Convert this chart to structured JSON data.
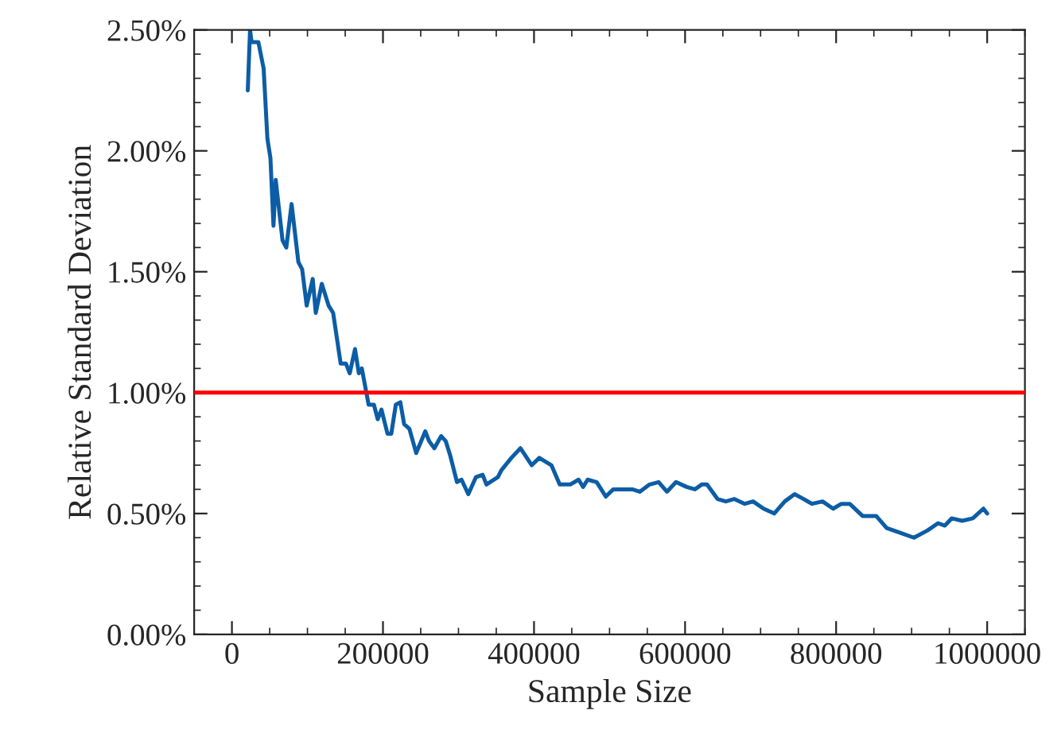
{
  "chart_data": {
    "type": "line",
    "xlabel": "Sample Size",
    "ylabel": "Relative Standard Deviation",
    "xlim": [
      -50000,
      1050000
    ],
    "xticks": [
      0,
      200000,
      400000,
      600000,
      800000,
      1000000
    ],
    "ylim": [
      0,
      2.5
    ],
    "yticks": [
      {
        "value": 0,
        "label": "0.00%"
      },
      {
        "value": 0.5,
        "label": "0.50%"
      },
      {
        "value": 1.0,
        "label": "1.00%"
      },
      {
        "value": 1.5,
        "label": "1.50%"
      },
      {
        "value": 2.0,
        "label": "2.00%"
      },
      {
        "value": 2.5,
        "label": "2.50%"
      }
    ],
    "grid": false,
    "legend": false,
    "ref_lines": [
      {
        "axis": "y",
        "value": 1.0,
        "color": "#ff0000",
        "line_style": "solid"
      }
    ],
    "series": [
      {
        "color": "#0c5da5",
        "x": [
          21000,
          24000,
          26000,
          35000,
          42000,
          47000,
          51000,
          55000,
          58000,
          67000,
          72000,
          79000,
          88000,
          93000,
          99000,
          107000,
          111000,
          119000,
          128000,
          134000,
          144000,
          151000,
          156000,
          163000,
          168000,
          172000,
          181000,
          188000,
          193000,
          198000,
          206000,
          211000,
          217000,
          223000,
          228000,
          235000,
          244000,
          256000,
          261000,
          268000,
          277000,
          283000,
          289000,
          298000,
          304000,
          313000,
          323000,
          332000,
          337000,
          352000,
          357000,
          370000,
          382000,
          397000,
          407000,
          423000,
          434000,
          448000,
          459000,
          465000,
          471000,
          483000,
          495000,
          505000,
          519000,
          530000,
          540000,
          553000,
          565000,
          576000,
          588000,
          602000,
          613000,
          622000,
          629000,
          643000,
          654000,
          665000,
          679000,
          690000,
          704000,
          718000,
          732000,
          745000,
          757000,
          768000,
          782000,
          796000,
          807000,
          818000,
          835000,
          853000,
          867000,
          885000,
          903000,
          921000,
          935000,
          944000,
          953000,
          967000,
          981000,
          995000,
          1000000
        ],
        "values": [
          2.25,
          2.5,
          2.45,
          2.45,
          2.34,
          2.05,
          1.97,
          1.69,
          1.88,
          1.63,
          1.6,
          1.78,
          1.54,
          1.51,
          1.36,
          1.47,
          1.33,
          1.45,
          1.36,
          1.33,
          1.12,
          1.12,
          1.08,
          1.18,
          1.08,
          1.1,
          0.95,
          0.95,
          0.89,
          0.93,
          0.83,
          0.83,
          0.95,
          0.96,
          0.87,
          0.85,
          0.75,
          0.84,
          0.8,
          0.77,
          0.82,
          0.8,
          0.74,
          0.63,
          0.64,
          0.58,
          0.65,
          0.66,
          0.62,
          0.65,
          0.68,
          0.73,
          0.77,
          0.7,
          0.73,
          0.7,
          0.62,
          0.62,
          0.64,
          0.61,
          0.64,
          0.63,
          0.57,
          0.6,
          0.6,
          0.6,
          0.59,
          0.62,
          0.63,
          0.59,
          0.63,
          0.61,
          0.6,
          0.62,
          0.62,
          0.56,
          0.55,
          0.56,
          0.54,
          0.55,
          0.52,
          0.5,
          0.55,
          0.58,
          0.56,
          0.54,
          0.55,
          0.52,
          0.54,
          0.54,
          0.49,
          0.49,
          0.44,
          0.42,
          0.4,
          0.43,
          0.46,
          0.45,
          0.48,
          0.47,
          0.48,
          0.52,
          0.5
        ]
      }
    ]
  }
}
